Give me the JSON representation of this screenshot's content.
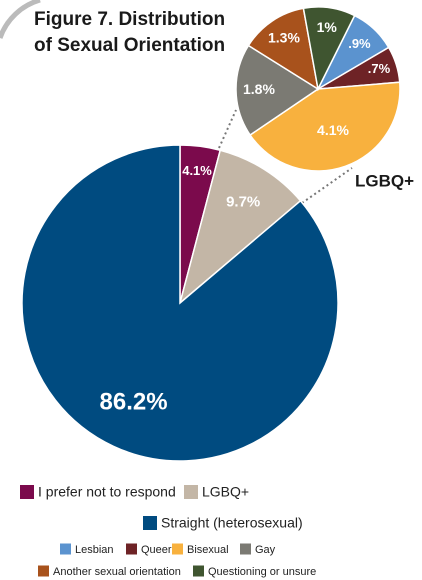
{
  "chart_data": [
    {
      "type": "pie",
      "title": [
        "Figure 7. Distribution",
        "of Sexual Orientation"
      ],
      "categories": [
        "I prefer not to respond",
        "LGBQ+",
        "Straight (heterosexual)"
      ],
      "values": [
        4.1,
        9.7,
        86.2
      ],
      "value_labels": [
        "4.1%",
        "9.7%",
        "86.2%"
      ],
      "colors": [
        "#7b0a4c",
        "#c3b6a6",
        "#004b80"
      ]
    },
    {
      "type": "pie",
      "title": "LGBQ+",
      "categories": [
        "Lesbian",
        "Queer",
        "Bisexual",
        "Gay",
        "Another sexual orientation",
        "Questioning or unsure"
      ],
      "values": [
        0.9,
        0.7,
        4.1,
        1.8,
        1.3,
        1
      ],
      "value_labels": [
        ".9%",
        ".7%",
        "4.1%",
        "1.8%",
        "1.3%",
        "1%"
      ],
      "colors": [
        "#5b93cf",
        "#6e2326",
        "#f8b13e",
        "#7b7a73",
        "#a8521c",
        "#3f5530"
      ]
    }
  ]
}
